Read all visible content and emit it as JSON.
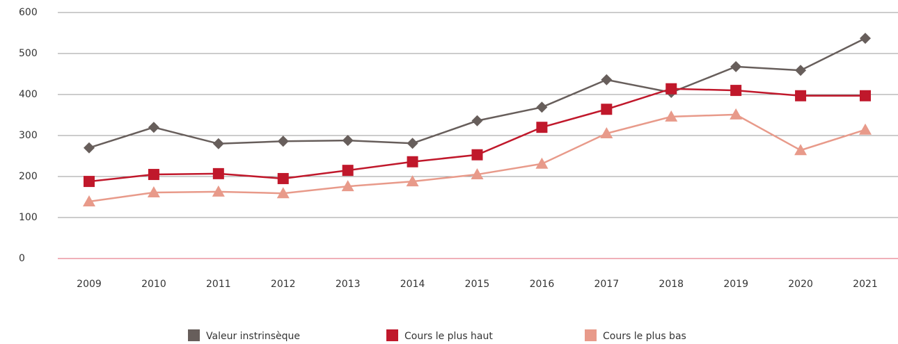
{
  "chart_data": {
    "type": "line",
    "categories": [
      "2009",
      "2010",
      "2011",
      "2012",
      "2013",
      "2014",
      "2015",
      "2016",
      "2017",
      "2018",
      "2019",
      "2020",
      "2021"
    ],
    "series": [
      {
        "name": "Valeur instrinsèque",
        "color": "#675e5b",
        "marker": "diamond",
        "values": [
          270,
          320,
          280,
          286,
          288,
          281,
          336,
          369,
          436,
          405,
          468,
          459,
          537
        ]
      },
      {
        "name": "Cours le plus haut",
        "color": "#c0182b",
        "marker": "square",
        "values": [
          188,
          205,
          207,
          195,
          215,
          236,
          253,
          320,
          364,
          414,
          410,
          397,
          397
        ]
      },
      {
        "name": "Cours le plus bas",
        "color": "#e89a8a",
        "marker": "triangle",
        "values": [
          139,
          161,
          163,
          159,
          176,
          188,
          205,
          231,
          305,
          346,
          351,
          264,
          314
        ]
      }
    ],
    "ylim": [
      0,
      600
    ],
    "yticks": [
      0,
      100,
      200,
      300,
      400,
      500,
      600
    ],
    "grid": true,
    "legend": "bottom"
  }
}
